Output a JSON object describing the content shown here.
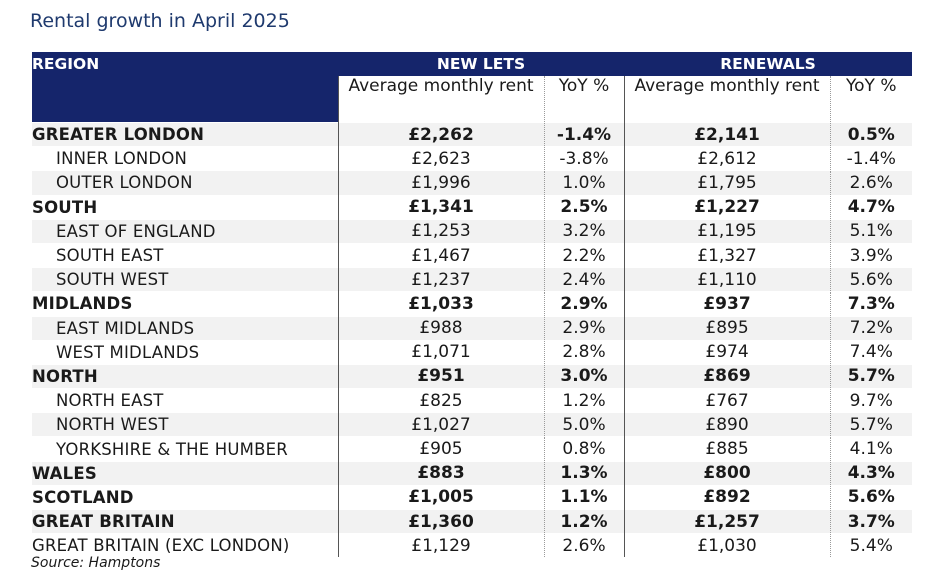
{
  "title": "Rental growth in April 2025",
  "source": "Source: Hamptons",
  "chart_data": {
    "type": "table",
    "title": "Rental growth in April 2025",
    "column_groups": [
      {
        "label": "REGION",
        "sub": []
      },
      {
        "label": "NEW LETS",
        "sub": [
          "Average monthly rent",
          "YoY %"
        ]
      },
      {
        "label": "RENEWALS",
        "sub": [
          "Average monthly rent",
          "YoY %"
        ]
      }
    ],
    "headers": {
      "region": "REGION",
      "new_lets": "NEW LETS",
      "renewals": "RENEWALS",
      "nl_rent": "Average monthly rent",
      "nl_yoy": "YoY %",
      "rn_rent": "Average monthly rent",
      "rn_yoy": "YoY %"
    },
    "rows": [
      {
        "region": "GREATER LONDON",
        "level": "main",
        "nl_rent": "£2,262",
        "nl_yoy": "-1.4%",
        "rn_rent": "£2,141",
        "rn_yoy": "0.5%"
      },
      {
        "region": "INNER LONDON",
        "level": "sub",
        "nl_rent": "£2,623",
        "nl_yoy": "-3.8%",
        "rn_rent": "£2,612",
        "rn_yoy": "-1.4%"
      },
      {
        "region": "OUTER LONDON",
        "level": "sub",
        "nl_rent": "£1,996",
        "nl_yoy": "1.0%",
        "rn_rent": "£1,795",
        "rn_yoy": "2.6%"
      },
      {
        "region": "SOUTH",
        "level": "main",
        "nl_rent": "£1,341",
        "nl_yoy": "2.5%",
        "rn_rent": "£1,227",
        "rn_yoy": "4.7%"
      },
      {
        "region": "EAST OF ENGLAND",
        "level": "sub",
        "nl_rent": "£1,253",
        "nl_yoy": "3.2%",
        "rn_rent": "£1,195",
        "rn_yoy": "5.1%"
      },
      {
        "region": "SOUTH EAST",
        "level": "sub",
        "nl_rent": "£1,467",
        "nl_yoy": "2.2%",
        "rn_rent": "£1,327",
        "rn_yoy": "3.9%"
      },
      {
        "region": "SOUTH WEST",
        "level": "sub",
        "nl_rent": "£1,237",
        "nl_yoy": "2.4%",
        "rn_rent": "£1,110",
        "rn_yoy": "5.6%"
      },
      {
        "region": "MIDLANDS",
        "level": "main",
        "nl_rent": "£1,033",
        "nl_yoy": "2.9%",
        "rn_rent": "£937",
        "rn_yoy": "7.3%"
      },
      {
        "region": "EAST MIDLANDS",
        "level": "sub",
        "nl_rent": "£988",
        "nl_yoy": "2.9%",
        "rn_rent": "£895",
        "rn_yoy": "7.2%"
      },
      {
        "region": "WEST MIDLANDS",
        "level": "sub",
        "nl_rent": "£1,071",
        "nl_yoy": "2.8%",
        "rn_rent": "£974",
        "rn_yoy": "7.4%"
      },
      {
        "region": "NORTH",
        "level": "main",
        "nl_rent": "£951",
        "nl_yoy": "3.0%",
        "rn_rent": "£869",
        "rn_yoy": "5.7%"
      },
      {
        "region": "NORTH EAST",
        "level": "sub",
        "nl_rent": "£825",
        "nl_yoy": "1.2%",
        "rn_rent": "£767",
        "rn_yoy": "9.7%"
      },
      {
        "region": "NORTH WEST",
        "level": "sub",
        "nl_rent": "£1,027",
        "nl_yoy": "5.0%",
        "rn_rent": "£890",
        "rn_yoy": "5.7%"
      },
      {
        "region": "YORKSHIRE & THE HUMBER",
        "level": "sub",
        "nl_rent": "£905",
        "nl_yoy": "0.8%",
        "rn_rent": "£885",
        "rn_yoy": "4.1%"
      },
      {
        "region": "WALES",
        "level": "main",
        "nl_rent": "£883",
        "nl_yoy": "1.3%",
        "rn_rent": "£800",
        "rn_yoy": "4.3%"
      },
      {
        "region": "SCOTLAND",
        "level": "main",
        "nl_rent": "£1,005",
        "nl_yoy": "1.1%",
        "rn_rent": "£892",
        "rn_yoy": "5.6%"
      },
      {
        "region": "GREAT BRITAIN",
        "level": "main",
        "nl_rent": "£1,360",
        "nl_yoy": "1.2%",
        "rn_rent": "£1,257",
        "rn_yoy": "3.7%"
      },
      {
        "region": "GREAT BRITAIN (EXC LONDON)",
        "level": "plain",
        "nl_rent": "£1,129",
        "nl_yoy": "2.6%",
        "rn_rent": "£1,030",
        "rn_yoy": "5.4%"
      }
    ]
  }
}
